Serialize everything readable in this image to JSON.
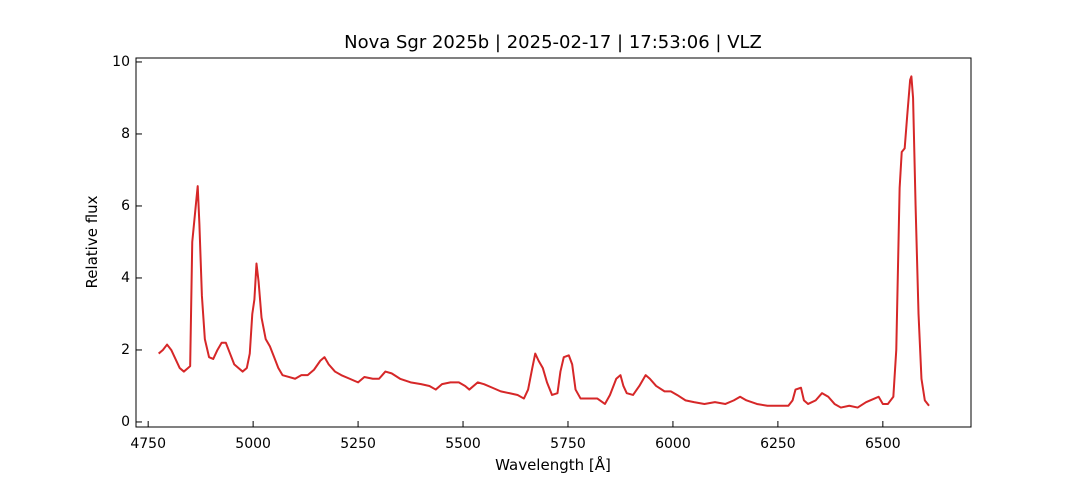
{
  "chart_data": {
    "type": "line",
    "title": "Nova Sgr 2025b | 2025-02-17 | 17:53:06 | VLZ",
    "xlabel": "Wavelength [Å]",
    "ylabel": "Relative flux",
    "xlim": [
      4721,
      6710
    ],
    "ylim": [
      -0.14,
      10.11
    ],
    "xticks": [
      4750,
      5000,
      5250,
      5500,
      5750,
      6000,
      6250,
      6500
    ],
    "yticks": [
      0,
      2,
      4,
      6,
      8,
      10
    ],
    "grid": false,
    "series": [
      {
        "color": "#d62728",
        "x": [
          4775,
          4785,
          4795,
          4805,
          4815,
          4825,
          4835,
          4845,
          4850,
          4855,
          4860,
          4865,
          4868,
          4872,
          4878,
          4885,
          4895,
          4905,
          4915,
          4925,
          4935,
          4945,
          4955,
          4965,
          4975,
          4985,
          4992,
          4998,
          5003,
          5008,
          5013,
          5020,
          5030,
          5040,
          5050,
          5060,
          5070,
          5085,
          5100,
          5115,
          5130,
          5145,
          5160,
          5170,
          5180,
          5195,
          5210,
          5230,
          5250,
          5265,
          5285,
          5300,
          5315,
          5330,
          5350,
          5375,
          5400,
          5420,
          5435,
          5450,
          5470,
          5490,
          5505,
          5515,
          5535,
          5550,
          5570,
          5590,
          5610,
          5630,
          5645,
          5655,
          5665,
          5672,
          5680,
          5690,
          5700,
          5712,
          5725,
          5732,
          5740,
          5752,
          5760,
          5768,
          5780,
          5800,
          5820,
          5838,
          5850,
          5865,
          5875,
          5882,
          5890,
          5905,
          5920,
          5935,
          5945,
          5960,
          5980,
          5995,
          6010,
          6030,
          6050,
          6075,
          6100,
          6125,
          6145,
          6160,
          6175,
          6200,
          6225,
          6250,
          6275,
          6285,
          6292,
          6305,
          6312,
          6322,
          6340,
          6355,
          6370,
          6385,
          6400,
          6420,
          6440,
          6460,
          6480,
          6490,
          6500,
          6512,
          6525,
          6532,
          6540,
          6545,
          6552,
          6558,
          6565,
          6568,
          6572,
          6578,
          6585,
          6592,
          6600,
          6610
        ],
        "values": [
          1.9,
          2.0,
          2.15,
          2.0,
          1.75,
          1.5,
          1.4,
          1.5,
          1.55,
          5.0,
          5.6,
          6.2,
          6.55,
          5.5,
          3.5,
          2.3,
          1.8,
          1.75,
          2.0,
          2.2,
          2.2,
          1.9,
          1.6,
          1.5,
          1.4,
          1.5,
          1.9,
          3.0,
          3.4,
          4.4,
          3.9,
          2.9,
          2.3,
          2.1,
          1.8,
          1.5,
          1.3,
          1.25,
          1.2,
          1.3,
          1.3,
          1.45,
          1.7,
          1.8,
          1.6,
          1.4,
          1.3,
          1.2,
          1.1,
          1.25,
          1.2,
          1.2,
          1.4,
          1.35,
          1.2,
          1.1,
          1.05,
          1.0,
          0.9,
          1.05,
          1.1,
          1.1,
          1.0,
          0.9,
          1.1,
          1.05,
          0.95,
          0.85,
          0.8,
          0.75,
          0.65,
          0.9,
          1.5,
          1.9,
          1.7,
          1.5,
          1.1,
          0.75,
          0.8,
          1.4,
          1.8,
          1.85,
          1.6,
          0.9,
          0.65,
          0.65,
          0.65,
          0.5,
          0.75,
          1.2,
          1.3,
          1.0,
          0.8,
          0.75,
          1.0,
          1.3,
          1.2,
          1.0,
          0.85,
          0.85,
          0.75,
          0.6,
          0.55,
          0.5,
          0.55,
          0.5,
          0.6,
          0.7,
          0.6,
          0.5,
          0.45,
          0.45,
          0.45,
          0.6,
          0.9,
          0.95,
          0.6,
          0.5,
          0.6,
          0.8,
          0.7,
          0.5,
          0.4,
          0.45,
          0.4,
          0.55,
          0.65,
          0.7,
          0.5,
          0.5,
          0.7,
          2.0,
          6.5,
          7.5,
          7.6,
          8.5,
          9.5,
          9.6,
          9.0,
          6.0,
          3.0,
          1.2,
          0.6,
          0.45
        ]
      }
    ]
  }
}
